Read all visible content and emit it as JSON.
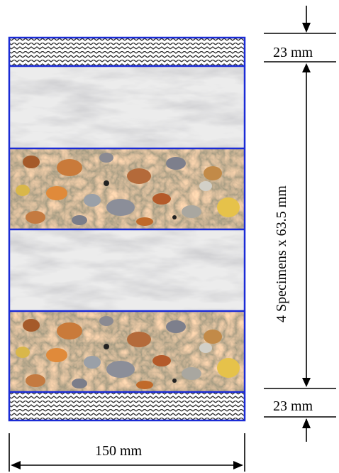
{
  "dimensions": {
    "top_cap": "23 mm",
    "bottom_cap": "23 mm",
    "specimens": "4 Specimens  x 63.5 mm",
    "width": "150 mm"
  },
  "colors": {
    "border": "#1a2bd6",
    "cap_pattern": "#333333",
    "marble_base": "#e9e9e9",
    "concrete_base": "#7a7a5e"
  },
  "layers": [
    "cap",
    "marble",
    "concrete",
    "marble",
    "concrete",
    "cap"
  ]
}
